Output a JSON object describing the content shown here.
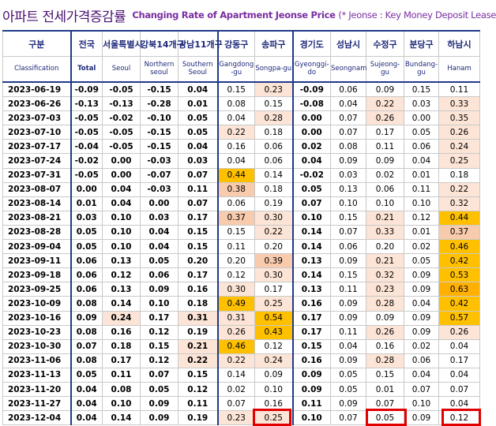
{
  "title": {
    "korean": "아파트 전세가격증감률",
    "english": "Changing Rate of Apartment Jeonse Price",
    "note": "(* Jeonse : Key Money Deposit Lease"
  },
  "columns": [
    {
      "kr": "구분",
      "en": "Classification"
    },
    {
      "kr": "전국",
      "en": "Total"
    },
    {
      "kr": "서울특별시",
      "en": "Seoul"
    },
    {
      "kr": "강북14개구",
      "en": "Northern seoul"
    },
    {
      "kr": "강남11개구",
      "en": "Southern Seoul"
    },
    {
      "kr": "강동구",
      "en": "Gangdong -gu"
    },
    {
      "kr": "송파구",
      "en": "Songpa-gu"
    },
    {
      "kr": "경기도",
      "en": "Gyeonggi-do"
    },
    {
      "kr": "성남시",
      "en": "Seongnam"
    },
    {
      "kr": "수정구",
      "en": "Sujeong-gu"
    },
    {
      "kr": "분당구",
      "en": "Bundang-gu"
    },
    {
      "kr": "하남시",
      "en": "Hanam"
    }
  ],
  "rows": [
    {
      "date": "2023-06-19",
      "v": [
        "-0.09",
        "-0.05",
        "-0.15",
        "0.04",
        "0.15",
        "0.23",
        "-0.09",
        "0.06",
        "0.09",
        "0.15",
        "0.11"
      ],
      "h": [
        "",
        "",
        "",
        "",
        "",
        "lo",
        "",
        "",
        "",
        "",
        ""
      ]
    },
    {
      "date": "2023-06-26",
      "v": [
        "-0.13",
        "-0.13",
        "-0.28",
        "0.01",
        "0.08",
        "0.15",
        "-0.08",
        "0.04",
        "0.22",
        "0.03",
        "0.33"
      ],
      "h": [
        "",
        "",
        "",
        "",
        "",
        "",
        "",
        "",
        "lo",
        "",
        "lo"
      ]
    },
    {
      "date": "2023-07-03",
      "v": [
        "-0.05",
        "-0.02",
        "-0.10",
        "0.05",
        "0.04",
        "0.28",
        "0.00",
        "0.07",
        "0.26",
        "0.00",
        "0.35"
      ],
      "h": [
        "",
        "",
        "",
        "",
        "",
        "lo",
        "",
        "",
        "lo",
        "",
        "lo"
      ]
    },
    {
      "date": "2023-07-10",
      "v": [
        "-0.05",
        "-0.05",
        "-0.15",
        "0.05",
        "0.22",
        "0.18",
        "0.00",
        "0.07",
        "0.17",
        "0.05",
        "0.26"
      ],
      "h": [
        "",
        "",
        "",
        "",
        "lo",
        "",
        "",
        "",
        "",
        "",
        "lo"
      ]
    },
    {
      "date": "2023-07-17",
      "v": [
        "-0.04",
        "-0.05",
        "-0.15",
        "0.04",
        "0.16",
        "0.06",
        "0.02",
        "0.08",
        "0.11",
        "0.06",
        "0.24"
      ],
      "h": [
        "",
        "",
        "",
        "",
        "",
        "",
        "",
        "",
        "",
        "",
        "lo"
      ]
    },
    {
      "date": "2023-07-24",
      "v": [
        "-0.02",
        "0.00",
        "-0.03",
        "0.03",
        "0.04",
        "0.06",
        "0.04",
        "0.09",
        "0.09",
        "0.04",
        "0.25"
      ],
      "h": [
        "",
        "",
        "",
        "",
        "",
        "",
        "",
        "",
        "",
        "",
        "lo"
      ]
    },
    {
      "date": "2023-07-31",
      "v": [
        "-0.05",
        "0.00",
        "-0.07",
        "0.07",
        "0.44",
        "0.14",
        "-0.02",
        "0.03",
        "0.02",
        "0.01",
        "0.18"
      ],
      "h": [
        "",
        "",
        "",
        "",
        "hi",
        "",
        "",
        "",
        "",
        "",
        ""
      ]
    },
    {
      "date": "2023-08-07",
      "v": [
        "0.00",
        "0.04",
        "-0.03",
        "0.11",
        "0.38",
        "0.18",
        "0.05",
        "0.13",
        "0.06",
        "0.11",
        "0.22"
      ],
      "h": [
        "",
        "",
        "",
        "",
        "mid",
        "",
        "",
        "",
        "",
        "",
        "lo"
      ]
    },
    {
      "date": "2023-08-14",
      "v": [
        "0.01",
        "0.04",
        "0.00",
        "0.07",
        "0.06",
        "0.19",
        "0.07",
        "0.10",
        "0.10",
        "0.10",
        "0.32"
      ],
      "h": [
        "",
        "",
        "",
        "",
        "",
        "",
        "",
        "",
        "",
        "",
        "lo"
      ]
    },
    {
      "date": "2023-08-21",
      "v": [
        "0.03",
        "0.10",
        "0.03",
        "0.17",
        "0.37",
        "0.30",
        "0.10",
        "0.15",
        "0.21",
        "0.12",
        "0.44"
      ],
      "h": [
        "",
        "",
        "",
        "",
        "mid",
        "lo",
        "",
        "",
        "lo",
        "",
        "hi"
      ]
    },
    {
      "date": "2023-08-28",
      "v": [
        "0.05",
        "0.10",
        "0.04",
        "0.15",
        "0.15",
        "0.22",
        "0.14",
        "0.07",
        "0.33",
        "0.01",
        "0.37"
      ],
      "h": [
        "",
        "",
        "",
        "",
        "",
        "lo",
        "",
        "",
        "lo",
        "",
        "mid"
      ]
    },
    {
      "date": "2023-09-04",
      "v": [
        "0.05",
        "0.10",
        "0.04",
        "0.15",
        "0.11",
        "0.20",
        "0.14",
        "0.06",
        "0.20",
        "0.02",
        "0.46"
      ],
      "h": [
        "",
        "",
        "",
        "",
        "",
        "",
        "",
        "",
        "",
        "",
        "hi"
      ]
    },
    {
      "date": "2023-09-11",
      "v": [
        "0.06",
        "0.13",
        "0.05",
        "0.20",
        "0.20",
        "0.39",
        "0.13",
        "0.09",
        "0.21",
        "0.05",
        "0.42"
      ],
      "h": [
        "",
        "",
        "",
        "",
        "",
        "mid",
        "",
        "",
        "lo",
        "",
        "hi"
      ]
    },
    {
      "date": "2023-09-18",
      "v": [
        "0.06",
        "0.12",
        "0.06",
        "0.17",
        "0.12",
        "0.30",
        "0.14",
        "0.15",
        "0.32",
        "0.09",
        "0.53"
      ],
      "h": [
        "",
        "",
        "",
        "",
        "",
        "lo",
        "",
        "",
        "lo",
        "",
        "hi"
      ]
    },
    {
      "date": "2023-09-25",
      "v": [
        "0.06",
        "0.13",
        "0.09",
        "0.16",
        "0.30",
        "0.17",
        "0.13",
        "0.11",
        "0.23",
        "0.09",
        "0.63"
      ],
      "h": [
        "",
        "",
        "",
        "",
        "lo",
        "",
        "",
        "",
        "lo",
        "",
        "top"
      ]
    },
    {
      "date": "2023-10-09",
      "v": [
        "0.08",
        "0.14",
        "0.10",
        "0.18",
        "0.49",
        "0.25",
        "0.16",
        "0.09",
        "0.28",
        "0.04",
        "0.42"
      ],
      "h": [
        "",
        "",
        "",
        "",
        "hi",
        "lo",
        "",
        "",
        "lo",
        "",
        "hi"
      ]
    },
    {
      "date": "2023-10-16",
      "v": [
        "0.09",
        "0.24",
        "0.17",
        "0.31",
        "0.31",
        "0.54",
        "0.17",
        "0.09",
        "0.09",
        "0.09",
        "0.57"
      ],
      "h": [
        "",
        "lo",
        "",
        "lo",
        "lo",
        "hi",
        "",
        "",
        "",
        "",
        "hi"
      ]
    },
    {
      "date": "2023-10-23",
      "v": [
        "0.08",
        "0.16",
        "0.12",
        "0.19",
        "0.26",
        "0.43",
        "0.17",
        "0.11",
        "0.26",
        "0.09",
        "0.26"
      ],
      "h": [
        "",
        "",
        "",
        "",
        "lo",
        "hi",
        "",
        "",
        "lo",
        "",
        "lo"
      ]
    },
    {
      "date": "2023-10-30",
      "v": [
        "0.07",
        "0.18",
        "0.15",
        "0.21",
        "0.46",
        "0.12",
        "0.15",
        "0.04",
        "0.16",
        "0.02",
        "0.04"
      ],
      "h": [
        "",
        "",
        "",
        "lo",
        "hi",
        "",
        "",
        "",
        "",
        "",
        ""
      ]
    },
    {
      "date": "2023-11-06",
      "v": [
        "0.08",
        "0.17",
        "0.12",
        "0.22",
        "0.22",
        "0.24",
        "0.16",
        "0.09",
        "0.28",
        "0.06",
        "0.17"
      ],
      "h": [
        "",
        "",
        "",
        "lo",
        "lo",
        "lo",
        "",
        "",
        "lo",
        "",
        ""
      ]
    },
    {
      "date": "2023-11-13",
      "v": [
        "0.05",
        "0.11",
        "0.07",
        "0.15",
        "0.14",
        "0.09",
        "0.09",
        "0.05",
        "0.15",
        "0.04",
        "0.04"
      ],
      "h": [
        "",
        "",
        "",
        "",
        "",
        "",
        "",
        "",
        "",
        "",
        ""
      ]
    },
    {
      "date": "2023-11-20",
      "v": [
        "0.04",
        "0.08",
        "0.05",
        "0.12",
        "0.02",
        "0.10",
        "0.09",
        "0.05",
        "0.01",
        "0.07",
        "0.07"
      ],
      "h": [
        "",
        "",
        "",
        "",
        "",
        "",
        "",
        "",
        "",
        "",
        ""
      ]
    },
    {
      "date": "2023-11-27",
      "v": [
        "0.04",
        "0.10",
        "0.09",
        "0.11",
        "0.07",
        "0.16",
        "0.11",
        "0.09",
        "0.07",
        "0.10",
        "0.04"
      ],
      "h": [
        "",
        "",
        "",
        "",
        "",
        "",
        "",
        "",
        "",
        "",
        ""
      ]
    },
    {
      "date": "2023-12-04",
      "v": [
        "0.04",
        "0.14",
        "0.09",
        "0.19",
        "0.23",
        "0.25",
        "0.10",
        "0.07",
        "0.05",
        "0.09",
        "0.12"
      ],
      "h": [
        "",
        "",
        "",
        "",
        "lo",
        "lo",
        "",
        "",
        "",
        "",
        ""
      ]
    }
  ],
  "colors": {
    "header_text": "#1f2a7a",
    "title_korean": "#4a1070",
    "title_english": "#7a2ea0",
    "highlight_light": "#fce4d6",
    "highlight_medium": "#f8cbad",
    "highlight_strong": "#ffc000",
    "highlight_top": "#ffb000",
    "callout_box": "#e00000"
  }
}
